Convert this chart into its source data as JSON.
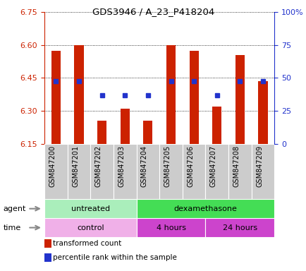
{
  "title": "GDS3946 / A_23_P418204",
  "samples": [
    "GSM847200",
    "GSM847201",
    "GSM847202",
    "GSM847203",
    "GSM847204",
    "GSM847205",
    "GSM847206",
    "GSM847207",
    "GSM847208",
    "GSM847209"
  ],
  "transformed_count": [
    6.575,
    6.6,
    6.255,
    6.31,
    6.255,
    6.6,
    6.575,
    6.32,
    6.555,
    6.435
  ],
  "percentile_rank_val": [
    6.435,
    6.435,
    6.37,
    6.37,
    6.37,
    6.435,
    6.435,
    6.37,
    6.435,
    6.435
  ],
  "ylim_left": [
    6.15,
    6.75
  ],
  "ylim_right": [
    0,
    100
  ],
  "yticks_left": [
    6.15,
    6.3,
    6.45,
    6.6,
    6.75
  ],
  "yticks_right": [
    0,
    25,
    50,
    75,
    100
  ],
  "ytick_labels_right": [
    "0",
    "25",
    "50",
    "75",
    "100%"
  ],
  "bar_color": "#cc2200",
  "dot_color": "#2233cc",
  "bar_bottom": 6.15,
  "agent_groups": [
    {
      "label": "untreated",
      "start": 0,
      "end": 4,
      "color": "#aaeebb"
    },
    {
      "label": "dexamethasone",
      "start": 4,
      "end": 10,
      "color": "#44dd55"
    }
  ],
  "time_groups": [
    {
      "label": "control",
      "start": 0,
      "end": 4,
      "color": "#f0b0e8"
    },
    {
      "label": "4 hours",
      "start": 4,
      "end": 7,
      "color": "#cc44cc"
    },
    {
      "label": "24 hours",
      "start": 7,
      "end": 10,
      "color": "#cc44cc"
    }
  ],
  "legend_items": [
    {
      "label": "transformed count",
      "color": "#cc2200"
    },
    {
      "label": "percentile rank within the sample",
      "color": "#2233cc"
    }
  ],
  "tick_color_left": "#cc2200",
  "tick_color_right": "#2233cc",
  "col_bg": "#cccccc"
}
